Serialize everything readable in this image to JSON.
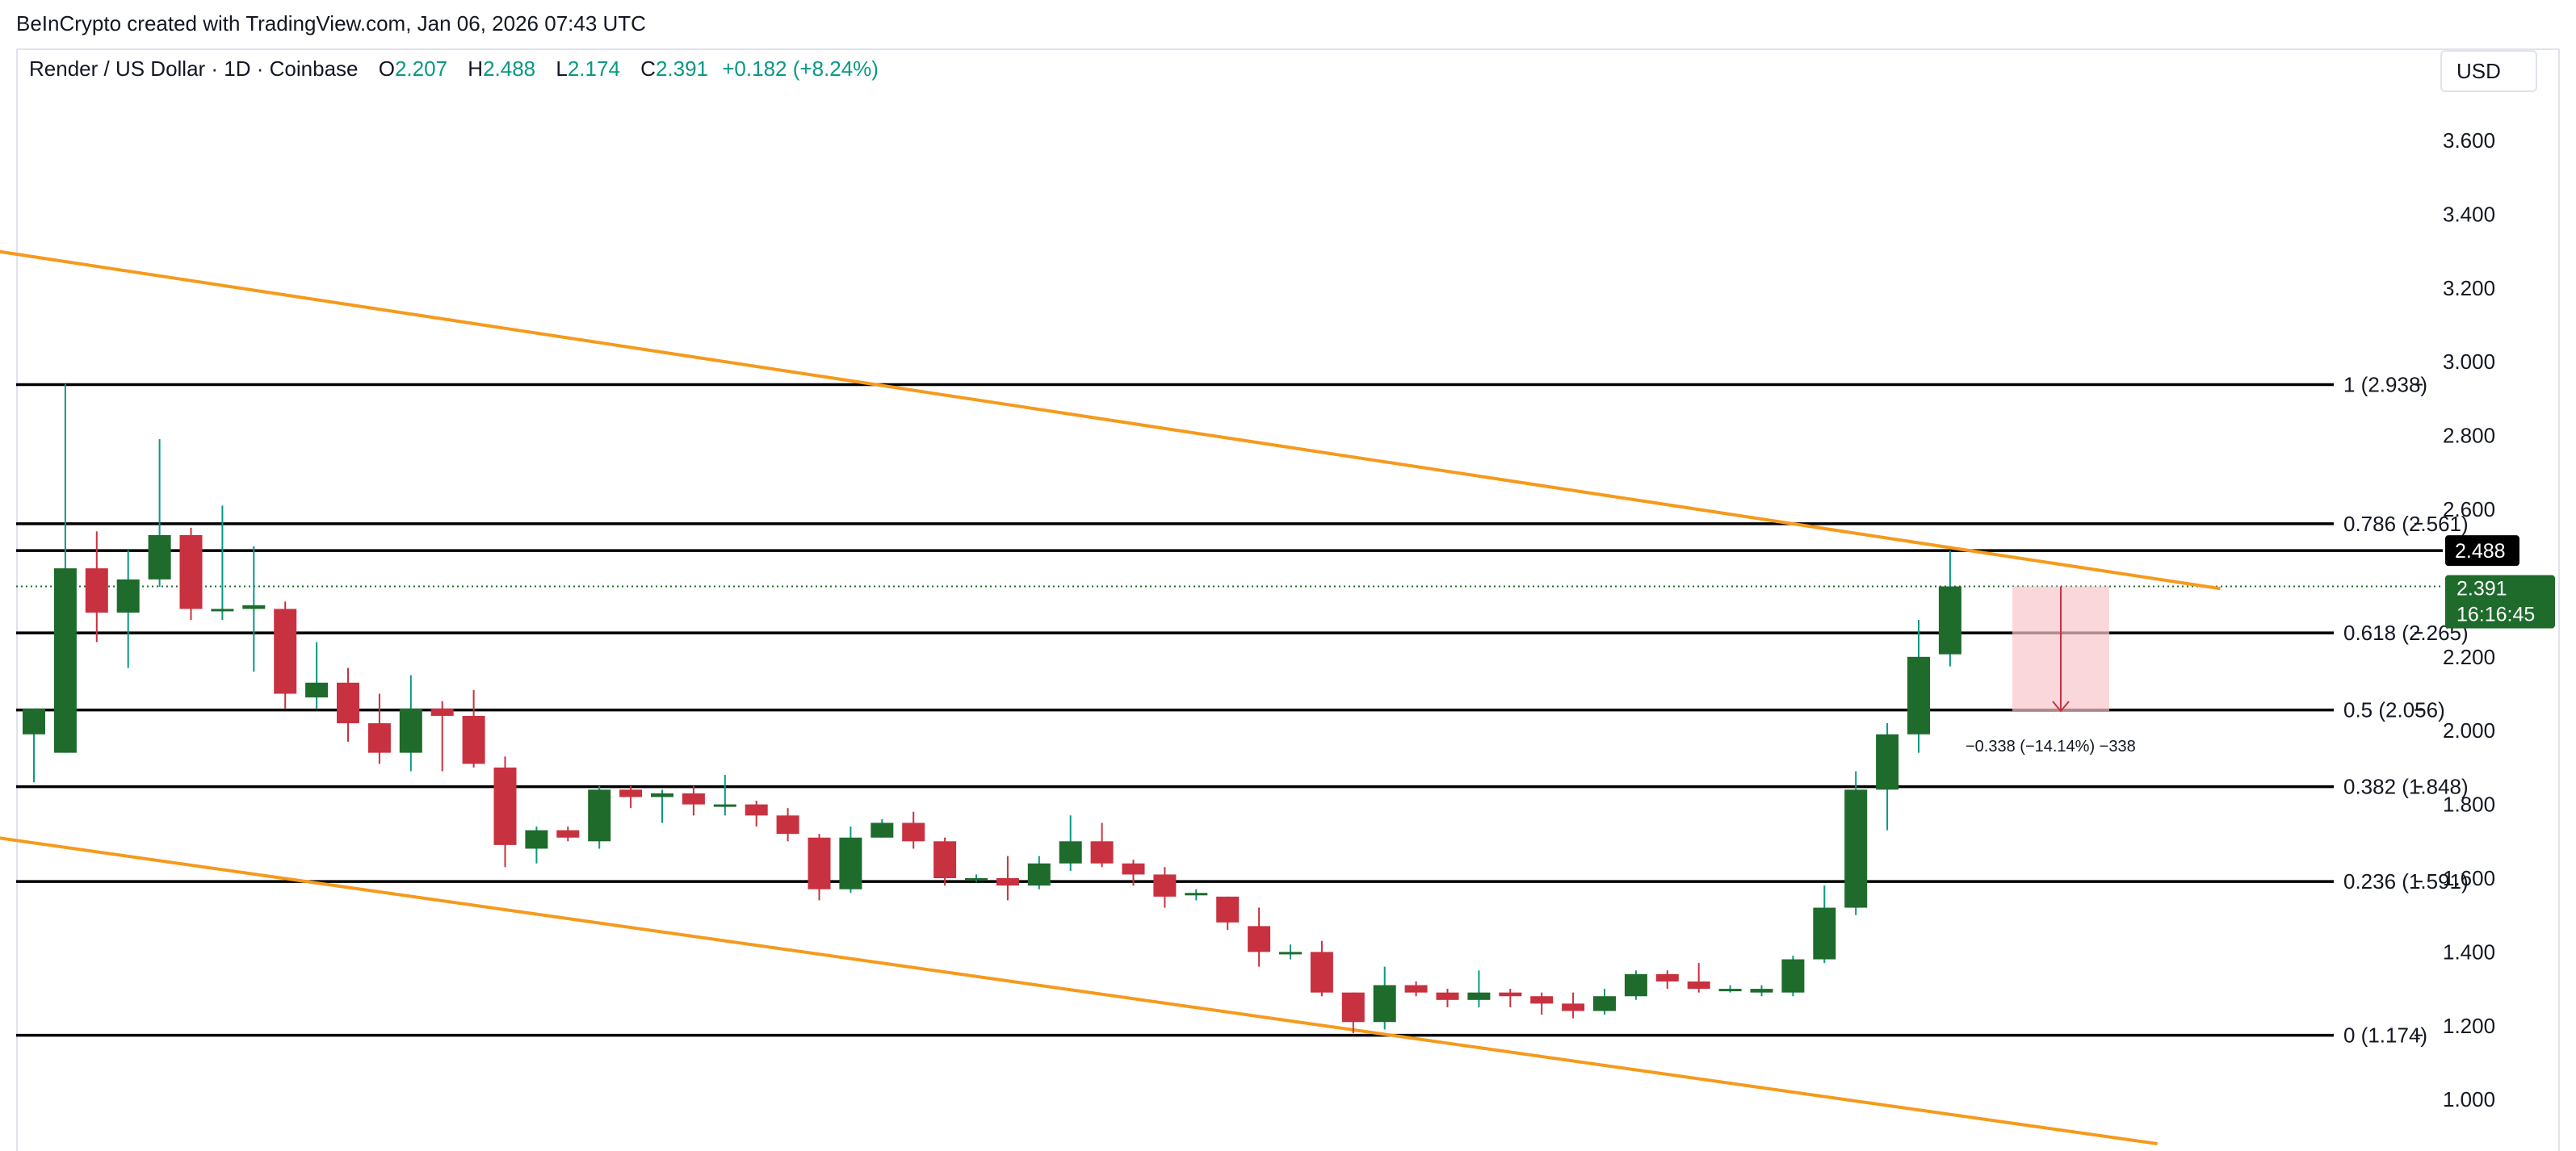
{
  "header": {
    "attribution": "BeInCrypto created with TradingView.com, Jan 06, 2026 07:43 UTC"
  },
  "legend": {
    "symbol": "Render / US Dollar · 1D · Coinbase",
    "open_label": "O",
    "open": "2.207",
    "high_label": "H",
    "high": "2.488",
    "low_label": "L",
    "low": "2.174",
    "close_label": "C",
    "close": "2.391",
    "change": "+0.182 (+8.24%)"
  },
  "currency_button": "USD",
  "colors": {
    "up": "#1e6b2c",
    "up_wick": "#089981",
    "down": "#c8313f",
    "trend": "#f59a1b",
    "fib_line": "#000000",
    "measure_fill": "#f7c6cc",
    "measure_line": "#c8313f",
    "price_tag": "#1e6b2c",
    "high_tag": "#000000"
  },
  "chart_data": {
    "type": "candlestick",
    "y_axis_ticks": [
      "3.600",
      "3.400",
      "3.200",
      "3.000",
      "2.800",
      "2.600",
      "2.200",
      "2.000",
      "1.800",
      "1.600",
      "1.400",
      "1.200",
      "1.000"
    ],
    "ylim": [
      0.87,
      3.75
    ],
    "candles": [
      {
        "o": 1.99,
        "h": 2.06,
        "l": 1.86,
        "c": 2.06
      },
      {
        "o": 1.94,
        "h": 2.94,
        "l": 1.94,
        "c": 2.44
      },
      {
        "o": 2.44,
        "h": 2.54,
        "l": 2.24,
        "c": 2.32
      },
      {
        "o": 2.32,
        "h": 2.49,
        "l": 2.17,
        "c": 2.41
      },
      {
        "o": 2.41,
        "h": 2.79,
        "l": 2.39,
        "c": 2.53
      },
      {
        "o": 2.53,
        "h": 2.55,
        "l": 2.3,
        "c": 2.33
      },
      {
        "o": 2.33,
        "h": 2.61,
        "l": 2.3,
        "c": 2.33
      },
      {
        "o": 2.33,
        "h": 2.5,
        "l": 2.16,
        "c": 2.34
      },
      {
        "o": 2.33,
        "h": 2.35,
        "l": 2.06,
        "c": 2.1
      },
      {
        "o": 2.09,
        "h": 2.24,
        "l": 2.06,
        "c": 2.13
      },
      {
        "o": 2.13,
        "h": 2.17,
        "l": 1.97,
        "c": 2.02
      },
      {
        "o": 2.02,
        "h": 2.1,
        "l": 1.91,
        "c": 1.94
      },
      {
        "o": 1.94,
        "h": 2.15,
        "l": 1.89,
        "c": 2.06
      },
      {
        "o": 2.06,
        "h": 2.08,
        "l": 1.89,
        "c": 2.04
      },
      {
        "o": 2.04,
        "h": 2.11,
        "l": 1.9,
        "c": 1.91
      },
      {
        "o": 1.9,
        "h": 1.93,
        "l": 1.63,
        "c": 1.69
      },
      {
        "o": 1.68,
        "h": 1.74,
        "l": 1.64,
        "c": 1.73
      },
      {
        "o": 1.73,
        "h": 1.74,
        "l": 1.7,
        "c": 1.71
      },
      {
        "o": 1.7,
        "h": 1.85,
        "l": 1.68,
        "c": 1.84
      },
      {
        "o": 1.84,
        "h": 1.85,
        "l": 1.79,
        "c": 1.82
      },
      {
        "o": 1.82,
        "h": 1.84,
        "l": 1.75,
        "c": 1.83
      },
      {
        "o": 1.83,
        "h": 1.85,
        "l": 1.77,
        "c": 1.8
      },
      {
        "o": 1.8,
        "h": 1.88,
        "l": 1.77,
        "c": 1.8
      },
      {
        "o": 1.8,
        "h": 1.81,
        "l": 1.74,
        "c": 1.77
      },
      {
        "o": 1.77,
        "h": 1.79,
        "l": 1.7,
        "c": 1.72
      },
      {
        "o": 1.71,
        "h": 1.72,
        "l": 1.54,
        "c": 1.57
      },
      {
        "o": 1.57,
        "h": 1.74,
        "l": 1.56,
        "c": 1.71
      },
      {
        "o": 1.71,
        "h": 1.76,
        "l": 1.71,
        "c": 1.75
      },
      {
        "o": 1.75,
        "h": 1.78,
        "l": 1.68,
        "c": 1.7
      },
      {
        "o": 1.7,
        "h": 1.71,
        "l": 1.58,
        "c": 1.6
      },
      {
        "o": 1.6,
        "h": 1.61,
        "l": 1.59,
        "c": 1.6
      },
      {
        "o": 1.6,
        "h": 1.66,
        "l": 1.54,
        "c": 1.58
      },
      {
        "o": 1.58,
        "h": 1.66,
        "l": 1.57,
        "c": 1.64
      },
      {
        "o": 1.64,
        "h": 1.77,
        "l": 1.62,
        "c": 1.7
      },
      {
        "o": 1.7,
        "h": 1.75,
        "l": 1.63,
        "c": 1.64
      },
      {
        "o": 1.64,
        "h": 1.65,
        "l": 1.58,
        "c": 1.61
      },
      {
        "o": 1.61,
        "h": 1.63,
        "l": 1.52,
        "c": 1.55
      },
      {
        "o": 1.56,
        "h": 1.57,
        "l": 1.54,
        "c": 1.56
      },
      {
        "o": 1.55,
        "h": 1.55,
        "l": 1.46,
        "c": 1.48
      },
      {
        "o": 1.47,
        "h": 1.52,
        "l": 1.36,
        "c": 1.4
      },
      {
        "o": 1.4,
        "h": 1.42,
        "l": 1.38,
        "c": 1.4
      },
      {
        "o": 1.4,
        "h": 1.43,
        "l": 1.28,
        "c": 1.29
      },
      {
        "o": 1.29,
        "h": 1.29,
        "l": 1.18,
        "c": 1.21
      },
      {
        "o": 1.21,
        "h": 1.36,
        "l": 1.19,
        "c": 1.31
      },
      {
        "o": 1.31,
        "h": 1.32,
        "l": 1.28,
        "c": 1.29
      },
      {
        "o": 1.29,
        "h": 1.3,
        "l": 1.25,
        "c": 1.27
      },
      {
        "o": 1.27,
        "h": 1.35,
        "l": 1.25,
        "c": 1.29
      },
      {
        "o": 1.29,
        "h": 1.3,
        "l": 1.25,
        "c": 1.28
      },
      {
        "o": 1.28,
        "h": 1.29,
        "l": 1.23,
        "c": 1.26
      },
      {
        "o": 1.26,
        "h": 1.29,
        "l": 1.22,
        "c": 1.24
      },
      {
        "o": 1.24,
        "h": 1.3,
        "l": 1.23,
        "c": 1.28
      },
      {
        "o": 1.28,
        "h": 1.35,
        "l": 1.27,
        "c": 1.34
      },
      {
        "o": 1.34,
        "h": 1.35,
        "l": 1.3,
        "c": 1.32
      },
      {
        "o": 1.32,
        "h": 1.37,
        "l": 1.29,
        "c": 1.3
      },
      {
        "o": 1.3,
        "h": 1.31,
        "l": 1.29,
        "c": 1.3
      },
      {
        "o": 1.29,
        "h": 1.31,
        "l": 1.28,
        "c": 1.3
      },
      {
        "o": 1.29,
        "h": 1.39,
        "l": 1.28,
        "c": 1.38
      },
      {
        "o": 1.38,
        "h": 1.58,
        "l": 1.37,
        "c": 1.52
      },
      {
        "o": 1.52,
        "h": 1.89,
        "l": 1.5,
        "c": 1.84
      },
      {
        "o": 1.84,
        "h": 2.02,
        "l": 1.73,
        "c": 1.99
      },
      {
        "o": 1.99,
        "h": 2.3,
        "l": 1.94,
        "c": 2.2
      },
      {
        "o": 2.207,
        "h": 2.488,
        "l": 2.174,
        "c": 2.391
      }
    ],
    "fib_levels": [
      {
        "value": 2.938,
        "label": "1 (2.938)"
      },
      {
        "value": 2.561,
        "label": "0.786 (2.561)"
      },
      {
        "value": 2.265,
        "label": "0.618 (2.265)"
      },
      {
        "value": 2.056,
        "label": "0.5 (2.056)"
      },
      {
        "value": 1.848,
        "label": "0.382 (1.848)"
      },
      {
        "value": 1.591,
        "label": "0.236 (1.591)"
      },
      {
        "value": 1.174,
        "label": "0 (1.174)"
      }
    ],
    "high_line": {
      "value": 2.488,
      "label": "2.488"
    },
    "price_tag": {
      "value": 2.391,
      "label": "2.391",
      "countdown": "16:16:45"
    },
    "measure": {
      "from": 2.391,
      "to": 2.053,
      "label": "−0.338 (−14.14%) −338"
    },
    "trendlines": [
      {
        "from": {
          "candle": -1.2,
          "price": 3.3
        },
        "to": {
          "candle": 69.6,
          "price": 2.385
        }
      },
      {
        "from": {
          "candle": -1.2,
          "price": 1.71
        },
        "to": {
          "candle": 67.6,
          "price": 0.88
        }
      }
    ]
  }
}
